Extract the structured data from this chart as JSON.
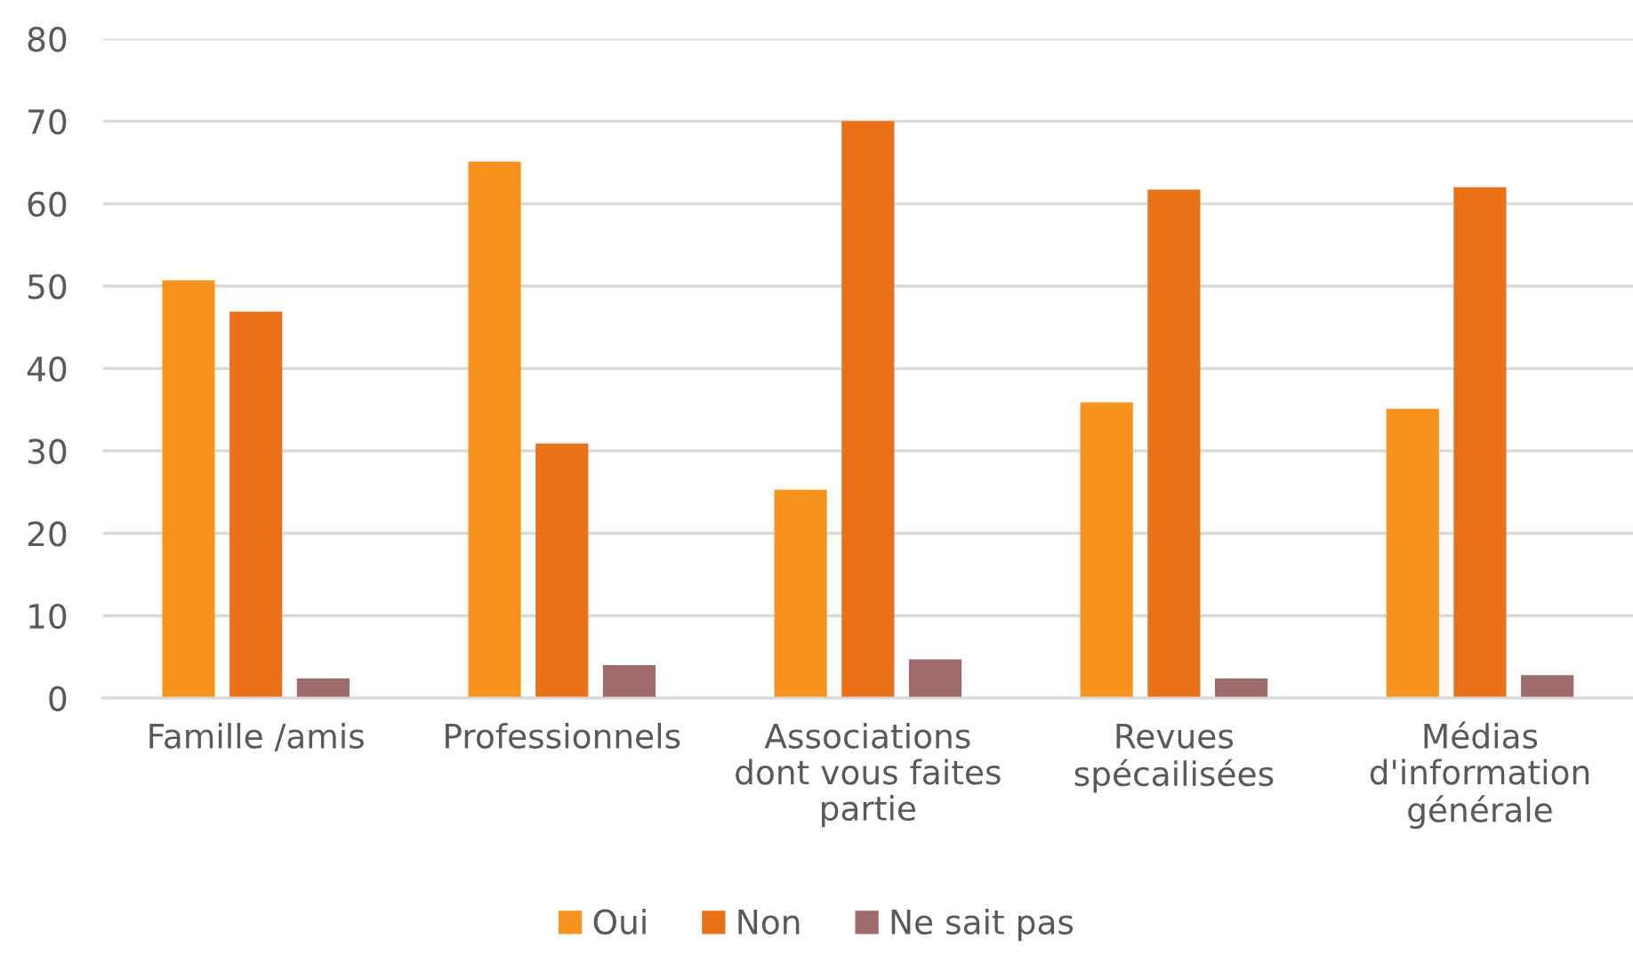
{
  "chart_data": {
    "type": "bar",
    "categories": [
      "Famille /amis",
      "Professionnels",
      "Associations\ndont vous faites\npartie",
      "Revues\nspécailisées",
      "Médias\nd'information\ngénérale"
    ],
    "series": [
      {
        "name": "Oui",
        "color": "#f7931e",
        "values": [
          50.7,
          65.1,
          25.3,
          35.9,
          35.1
        ]
      },
      {
        "name": "Non",
        "color": "#eb7118",
        "values": [
          46.9,
          30.9,
          70.0,
          61.7,
          62.0
        ]
      },
      {
        "name": "Ne sait pas",
        "color": "#9e6a6a",
        "values": [
          2.4,
          4.0,
          4.7,
          2.4,
          2.8
        ]
      }
    ],
    "ylim": [
      0,
      80
    ],
    "yticks": [
      0,
      10,
      20,
      30,
      40,
      50,
      60,
      70,
      80
    ],
    "grid": "y",
    "legend": "bottom"
  }
}
